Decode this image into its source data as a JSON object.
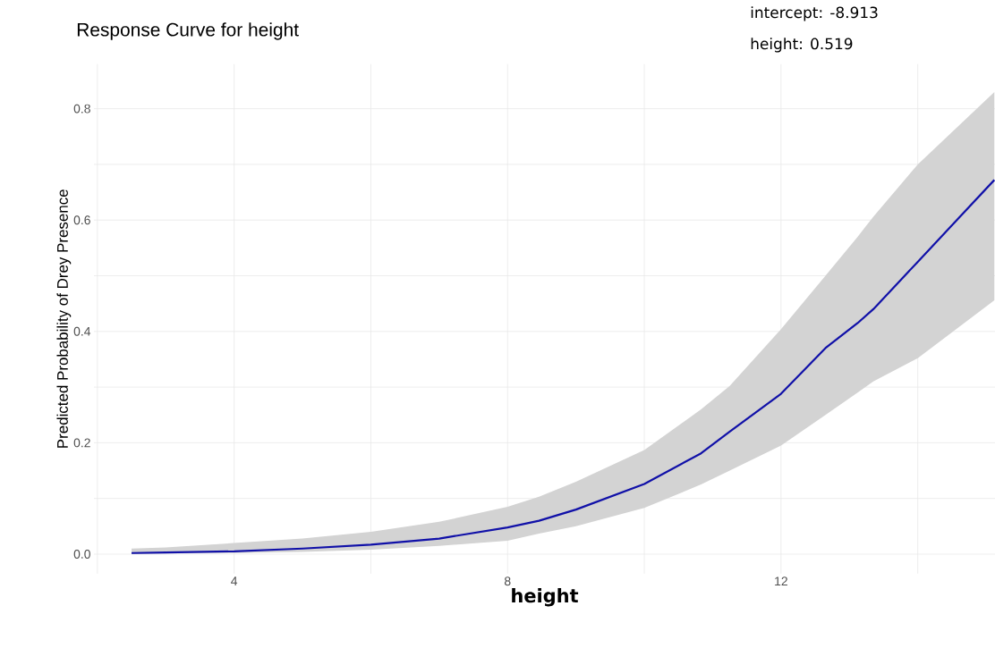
{
  "chart_data": {
    "type": "line",
    "title": "Response Curve for height",
    "xlabel": "height",
    "ylabel": "Predicted Probability of Drey Presence",
    "annotations": [
      "intercept: -8.913",
      "height: 0.519"
    ],
    "xlim": [
      1.95,
      15.13
    ],
    "ylim": [
      -0.035,
      0.88
    ],
    "xticks": [
      {
        "value": 2,
        "label": null
      },
      4,
      {
        "value": 6,
        "label": null
      },
      8,
      {
        "value": 10,
        "label": null
      },
      12,
      {
        "value": 14,
        "label": null
      }
    ],
    "yticks": [
      {
        "value": 0,
        "label": "0.0"
      },
      {
        "value": 0.1,
        "label": null
      },
      0.2,
      {
        "value": 0.3,
        "label": null
      },
      0.4,
      {
        "value": 0.5,
        "label": null
      },
      0.6,
      {
        "value": 0.7,
        "label": null
      },
      0.8
    ],
    "grid": true,
    "line_style": "solid",
    "series": [
      {
        "color": "#1010a8",
        "x": [
          2.5,
          3,
          4,
          5,
          6,
          7,
          8,
          8.46,
          9,
          10,
          10.83,
          11.25,
          12,
          12.65,
          13.12,
          13.35,
          14,
          15.12
        ],
        "values": [
          0.002,
          0.003,
          0.005,
          0.01,
          0.017,
          0.028,
          0.048,
          0.06,
          0.08,
          0.126,
          0.181,
          0.22,
          0.288,
          0.37,
          0.415,
          0.44,
          0.525,
          0.672
        ],
        "lower": [
          0.0,
          0.001,
          0.002,
          0.004,
          0.008,
          0.015,
          0.024,
          0.037,
          0.05,
          0.083,
          0.125,
          0.15,
          0.195,
          0.25,
          0.29,
          0.31,
          0.352,
          0.456
        ],
        "upper": [
          0.01,
          0.012,
          0.02,
          0.028,
          0.04,
          0.058,
          0.085,
          0.103,
          0.13,
          0.187,
          0.26,
          0.302,
          0.404,
          0.5,
          0.57,
          0.606,
          0.7,
          0.83
        ]
      }
    ]
  }
}
